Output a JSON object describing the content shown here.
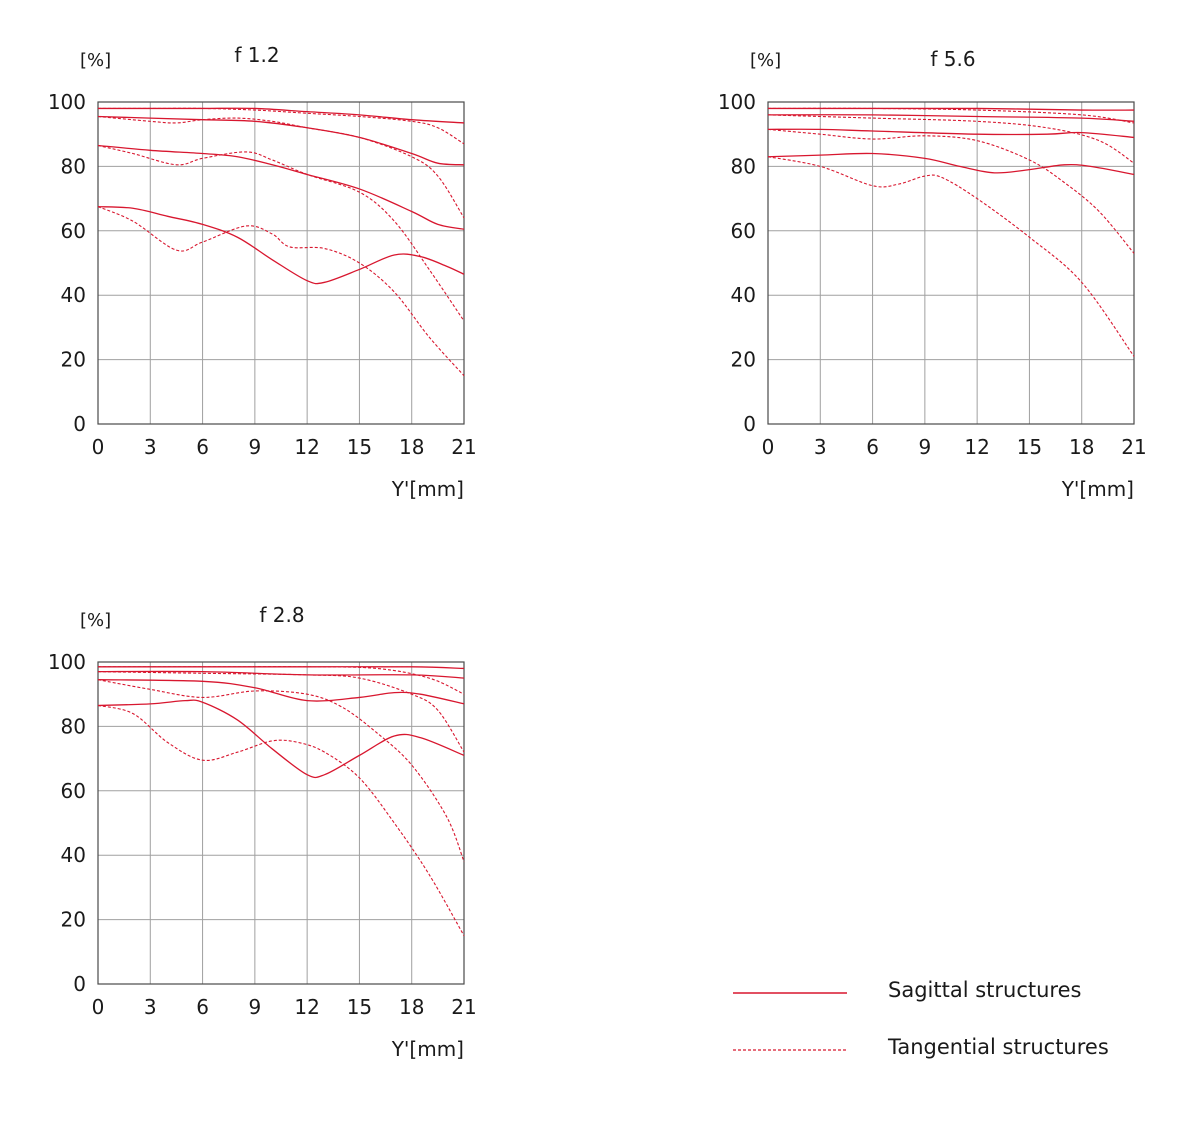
{
  "colors": {
    "curve": "#d8172f",
    "grid": "#a0a0a0",
    "axis": "#4a4a4a",
    "text": "#1a1a1a"
  },
  "legend": {
    "sagittal": "Sagittal structures",
    "tangential": "Tangential structures"
  },
  "chart_data": [
    {
      "type": "line",
      "title": "f 1.2",
      "ylabel": "[%]",
      "xlabel": "Y'[mm]",
      "xlim": [
        0,
        21
      ],
      "ylim": [
        0,
        100
      ],
      "xticks": [
        "0",
        "3",
        "6",
        "9",
        "12",
        "15",
        "18",
        "21"
      ],
      "yticks": [
        "0",
        "20",
        "40",
        "60",
        "80",
        "100"
      ],
      "grid": true,
      "series": [
        {
          "style": "sagittal",
          "points": [
            [
              0,
              98
            ],
            [
              3,
              98
            ],
            [
              6,
              98
            ],
            [
              9,
              98
            ],
            [
              12,
              97
            ],
            [
              15,
              96
            ],
            [
              18,
              94.5
            ],
            [
              21,
              93.5
            ]
          ]
        },
        {
          "style": "tangential",
          "points": [
            [
              0,
              98
            ],
            [
              3,
              98
            ],
            [
              6,
              98
            ],
            [
              9,
              97.5
            ],
            [
              12,
              96.5
            ],
            [
              15,
              95.5
            ],
            [
              18,
              94
            ],
            [
              19.5,
              92
            ],
            [
              21,
              87
            ]
          ]
        },
        {
          "style": "sagittal",
          "points": [
            [
              0,
              95.5
            ],
            [
              3,
              95
            ],
            [
              6,
              94.5
            ],
            [
              9,
              94
            ],
            [
              12,
              92
            ],
            [
              15,
              89
            ],
            [
              18,
              84
            ],
            [
              19.5,
              81
            ],
            [
              21,
              80.5
            ]
          ]
        },
        {
          "style": "tangential",
          "points": [
            [
              0,
              95.5
            ],
            [
              3,
              94
            ],
            [
              4.5,
              93.5
            ],
            [
              6,
              94.5
            ],
            [
              8,
              95
            ],
            [
              10,
              94
            ],
            [
              12,
              92
            ],
            [
              15,
              89
            ],
            [
              18,
              83
            ],
            [
              19.5,
              77
            ],
            [
              21,
              64
            ]
          ]
        },
        {
          "style": "sagittal",
          "points": [
            [
              0,
              86.5
            ],
            [
              3,
              85
            ],
            [
              6,
              84
            ],
            [
              8,
              83
            ],
            [
              10,
              80.5
            ],
            [
              12,
              77.5
            ],
            [
              15,
              73
            ],
            [
              18,
              66
            ],
            [
              19.5,
              62
            ],
            [
              21,
              60.5
            ]
          ]
        },
        {
          "style": "tangential",
          "points": [
            [
              0,
              86.5
            ],
            [
              2,
              84
            ],
            [
              4.5,
              80.5
            ],
            [
              6,
              82.5
            ],
            [
              8.5,
              84.5
            ],
            [
              10,
              82
            ],
            [
              12,
              77.5
            ],
            [
              15,
              72
            ],
            [
              17,
              63
            ],
            [
              19,
              48
            ],
            [
              21,
              32
            ]
          ]
        },
        {
          "style": "sagittal",
          "points": [
            [
              0,
              67.5
            ],
            [
              2,
              67
            ],
            [
              4,
              64.5
            ],
            [
              6,
              62
            ],
            [
              8,
              58
            ],
            [
              10,
              51
            ],
            [
              12,
              44.5
            ],
            [
              13,
              44
            ],
            [
              15,
              48
            ],
            [
              17,
              52.5
            ],
            [
              18.5,
              52
            ],
            [
              20,
              49
            ],
            [
              21,
              46.5
            ]
          ]
        },
        {
          "style": "tangential",
          "points": [
            [
              0,
              67.5
            ],
            [
              2,
              63
            ],
            [
              4.5,
              54
            ],
            [
              6,
              56.5
            ],
            [
              8.5,
              61.5
            ],
            [
              10,
              59
            ],
            [
              11,
              55
            ],
            [
              13,
              54.5
            ],
            [
              15,
              50
            ],
            [
              17,
              41
            ],
            [
              19,
              27
            ],
            [
              21,
              15
            ]
          ]
        }
      ]
    },
    {
      "type": "line",
      "title": "f 5.6",
      "ylabel": "[%]",
      "xlabel": "Y'[mm]",
      "xlim": [
        0,
        21
      ],
      "ylim": [
        0,
        100
      ],
      "xticks": [
        "0",
        "3",
        "6",
        "9",
        "12",
        "15",
        "18",
        "21"
      ],
      "yticks": [
        "0",
        "20",
        "40",
        "60",
        "80",
        "100"
      ],
      "grid": true,
      "series": [
        {
          "style": "sagittal",
          "points": [
            [
              0,
              98
            ],
            [
              6,
              98
            ],
            [
              12,
              98
            ],
            [
              18,
              97.5
            ],
            [
              21,
              97.5
            ]
          ]
        },
        {
          "style": "tangential",
          "points": [
            [
              0,
              98
            ],
            [
              6,
              98
            ],
            [
              12,
              97.5
            ],
            [
              18,
              96
            ],
            [
              21,
              93.5
            ]
          ]
        },
        {
          "style": "sagittal",
          "points": [
            [
              0,
              96
            ],
            [
              6,
              96
            ],
            [
              12,
              95.5
            ],
            [
              18,
              95
            ],
            [
              21,
              94
            ]
          ]
        },
        {
          "style": "tangential",
          "points": [
            [
              0,
              96
            ],
            [
              6,
              95
            ],
            [
              12,
              94
            ],
            [
              16,
              92
            ],
            [
              19,
              88
            ],
            [
              21,
              81
            ]
          ]
        },
        {
          "style": "sagittal",
          "points": [
            [
              0,
              91.5
            ],
            [
              3,
              91.5
            ],
            [
              6,
              91
            ],
            [
              12,
              90
            ],
            [
              16,
              90
            ],
            [
              18,
              90.5
            ],
            [
              21,
              89
            ]
          ]
        },
        {
          "style": "tangential",
          "points": [
            [
              0,
              91.5
            ],
            [
              3,
              90
            ],
            [
              6,
              88.5
            ],
            [
              9,
              89.5
            ],
            [
              12,
              88
            ],
            [
              15,
              82
            ],
            [
              17,
              75
            ],
            [
              19,
              66
            ],
            [
              21,
              53
            ]
          ]
        },
        {
          "style": "sagittal",
          "points": [
            [
              0,
              83
            ],
            [
              3,
              83.5
            ],
            [
              6,
              84
            ],
            [
              9,
              82.5
            ],
            [
              11,
              80
            ],
            [
              13,
              78
            ],
            [
              15,
              79
            ],
            [
              17,
              80.5
            ],
            [
              18.5,
              80
            ],
            [
              21,
              77.5
            ]
          ]
        },
        {
          "style": "tangential",
          "points": [
            [
              0,
              83
            ],
            [
              3,
              80
            ],
            [
              6,
              74
            ],
            [
              7.5,
              74.5
            ],
            [
              9,
              77
            ],
            [
              10,
              76.5
            ],
            [
              12,
              70
            ],
            [
              15,
              58
            ],
            [
              18,
              44
            ],
            [
              21,
              21
            ]
          ]
        }
      ]
    },
    {
      "type": "line",
      "title": "f 2.8",
      "ylabel": "[%]",
      "xlabel": "Y'[mm]",
      "xlim": [
        0,
        21
      ],
      "ylim": [
        0,
        100
      ],
      "xticks": [
        "0",
        "3",
        "6",
        "9",
        "12",
        "15",
        "18",
        "21"
      ],
      "yticks": [
        "0",
        "20",
        "40",
        "60",
        "80",
        "100"
      ],
      "grid": true,
      "series": [
        {
          "style": "sagittal",
          "points": [
            [
              0,
              98.5
            ],
            [
              6,
              98.5
            ],
            [
              12,
              98.5
            ],
            [
              18,
              98.5
            ],
            [
              21,
              98
            ]
          ]
        },
        {
          "style": "tangential",
          "points": [
            [
              0,
              98.5
            ],
            [
              6,
              98.5
            ],
            [
              12,
              98.5
            ],
            [
              16,
              98
            ],
            [
              19,
              95
            ],
            [
              21,
              90
            ]
          ]
        },
        {
          "style": "sagittal",
          "points": [
            [
              0,
              97
            ],
            [
              6,
              97
            ],
            [
              12,
              96
            ],
            [
              18,
              96
            ],
            [
              21,
              95
            ]
          ]
        },
        {
          "style": "tangential",
          "points": [
            [
              0,
              97
            ],
            [
              6,
              96.5
            ],
            [
              12,
              96
            ],
            [
              15,
              95
            ],
            [
              18,
              90
            ],
            [
              19.5,
              85
            ],
            [
              21,
              72
            ]
          ]
        },
        {
          "style": "sagittal",
          "points": [
            [
              0,
              94.5
            ],
            [
              6,
              94
            ],
            [
              9,
              92
            ],
            [
              12,
              88
            ],
            [
              15,
              89
            ],
            [
              17,
              90.5
            ],
            [
              18.5,
              90
            ],
            [
              21,
              87
            ]
          ]
        },
        {
          "style": "tangential",
          "points": [
            [
              0,
              94.5
            ],
            [
              3,
              91.5
            ],
            [
              6,
              89
            ],
            [
              9,
              91
            ],
            [
              12,
              90
            ],
            [
              14,
              86
            ],
            [
              16,
              78
            ],
            [
              18,
              68
            ],
            [
              20,
              52
            ],
            [
              21,
              38
            ]
          ]
        },
        {
          "style": "sagittal",
          "points": [
            [
              0,
              86.5
            ],
            [
              3,
              87
            ],
            [
              5,
              88
            ],
            [
              6,
              87.5
            ],
            [
              8,
              82
            ],
            [
              10,
              73
            ],
            [
              12,
              65
            ],
            [
              13,
              65
            ],
            [
              15,
              71
            ],
            [
              17,
              77
            ],
            [
              18.5,
              76.5
            ],
            [
              21,
              71
            ]
          ]
        },
        {
          "style": "tangential",
          "points": [
            [
              0,
              86.5
            ],
            [
              2,
              84
            ],
            [
              4,
              75
            ],
            [
              6,
              69.5
            ],
            [
              8,
              72
            ],
            [
              10,
              75.5
            ],
            [
              11.5,
              75
            ],
            [
              13,
              72
            ],
            [
              15,
              64
            ],
            [
              17,
              50
            ],
            [
              19,
              34
            ],
            [
              21,
              15
            ]
          ]
        }
      ]
    }
  ]
}
